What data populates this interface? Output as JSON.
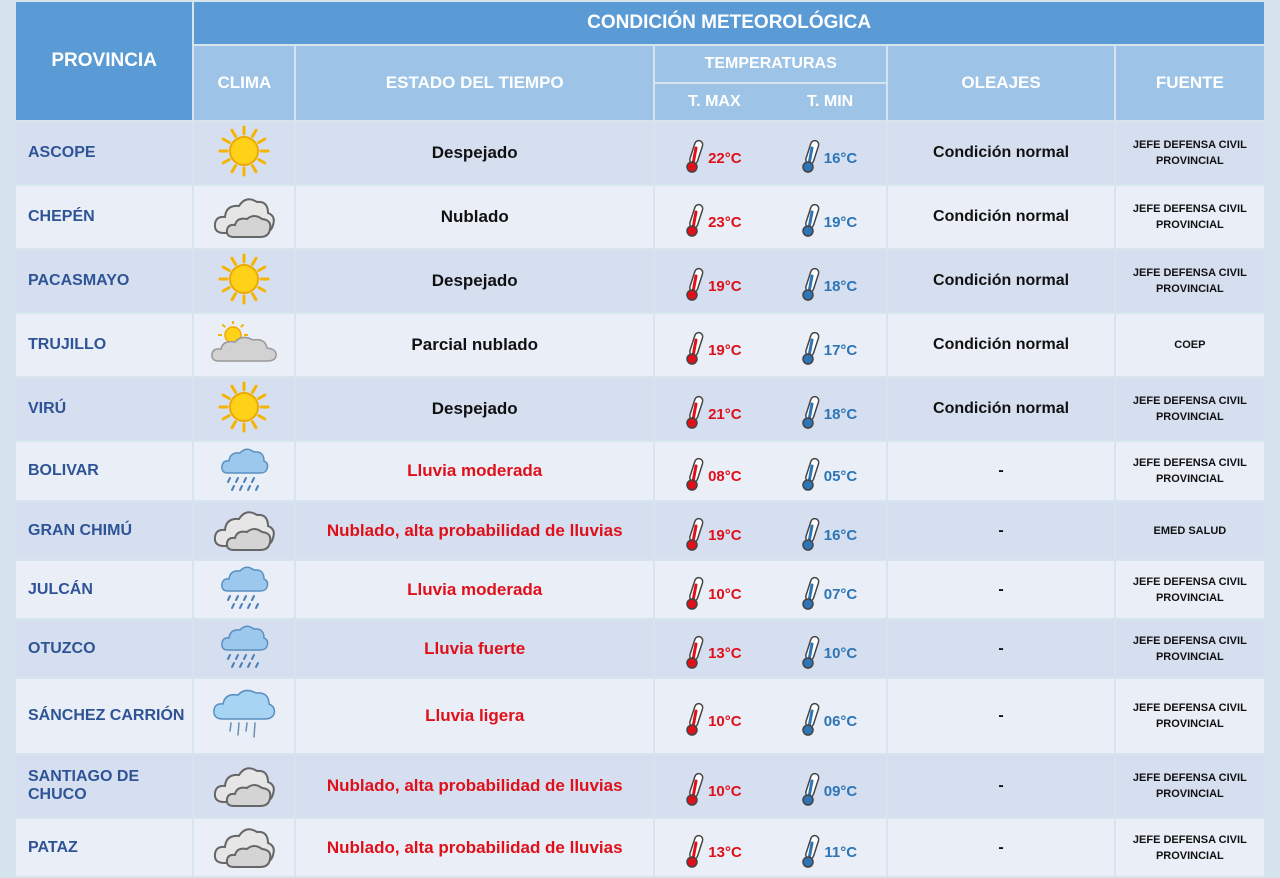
{
  "header": {
    "provincia": "PROVINCIA",
    "condicion": "CONDICIÓN METEOROLÓGICA",
    "clima": "CLIMA",
    "estado": "ESTADO DEL TIEMPO",
    "temperaturas": "TEMPERATURAS",
    "tmax": "T. MAX",
    "tmin": "T. MIN",
    "oleajes": "OLEAJES",
    "fuente": "FUENTE"
  },
  "rows": [
    {
      "provincia": "ASCOPE",
      "icon": "sun-icon",
      "estado": "Despejado",
      "alert": false,
      "tmax": "22°C",
      "tmin": "16°C",
      "oleajes": "Condición normal",
      "fuente1": "JEFE DEFENSA CIVIL",
      "fuente2": "PROVINCIAL"
    },
    {
      "provincia": "CHEPÉN",
      "icon": "cloud-icon",
      "estado": "Nublado",
      "alert": false,
      "tmax": "23°C",
      "tmin": "19°C",
      "oleajes": "Condición normal",
      "fuente1": "JEFE DEFENSA CIVIL",
      "fuente2": "PROVINCIAL"
    },
    {
      "provincia": "PACASMAYO",
      "icon": "sun-icon",
      "estado": "Despejado",
      "alert": false,
      "tmax": "19°C",
      "tmin": "18°C",
      "oleajes": "Condición normal",
      "fuente1": "JEFE DEFENSA CIVIL",
      "fuente2": "PROVINCIAL"
    },
    {
      "provincia": "TRUJILLO",
      "icon": "partly-cloudy-icon",
      "estado": "Parcial nublado",
      "alert": false,
      "tmax": "19°C",
      "tmin": "17°C",
      "oleajes": "Condición normal",
      "fuente1": "COEP",
      "fuente2": ""
    },
    {
      "provincia": "VIRÚ",
      "icon": "sun-icon",
      "estado": "Despejado",
      "alert": false,
      "tmax": "21°C",
      "tmin": "18°C",
      "oleajes": "Condición normal",
      "fuente1": "JEFE DEFENSA CIVIL",
      "fuente2": "PROVINCIAL"
    },
    {
      "provincia": "BOLIVAR",
      "icon": "rain-cloud-icon",
      "estado": "Lluvia moderada",
      "alert": true,
      "tmax": "08°C",
      "tmin": "05°C",
      "oleajes": "-",
      "fuente1": "JEFE DEFENSA CIVIL",
      "fuente2": "PROVINCIAL"
    },
    {
      "provincia": "GRAN CHIMÚ",
      "icon": "cloud-icon",
      "estado": "Nublado, alta probabilidad de lluvias",
      "alert": true,
      "tmax": "19°C",
      "tmin": "16°C",
      "oleajes": "-",
      "fuente1": "EMED SALUD",
      "fuente2": ""
    },
    {
      "provincia": "JULCÁN",
      "icon": "rain-cloud-icon",
      "estado": "Lluvia moderada",
      "alert": true,
      "tmax": "10°C",
      "tmin": "07°C",
      "oleajes": "-",
      "fuente1": "JEFE DEFENSA CIVIL",
      "fuente2": "PROVINCIAL"
    },
    {
      "provincia": "OTUZCO",
      "icon": "rain-cloud-icon",
      "estado": "Lluvia fuerte",
      "alert": true,
      "tmax": "13°C",
      "tmin": "10°C",
      "oleajes": "-",
      "fuente1": "JEFE DEFENSA CIVIL",
      "fuente2": "PROVINCIAL"
    },
    {
      "provincia": "SÁNCHEZ CARRIÓN",
      "icon": "light-rain-icon",
      "estado": "Lluvia ligera",
      "alert": true,
      "tmax": "10°C",
      "tmin": "06°C",
      "oleajes": "-",
      "fuente1": "JEFE DEFENSA CIVIL",
      "fuente2": "PROVINCIAL"
    },
    {
      "provincia": "SANTIAGO DE CHUCO",
      "icon": "cloud-icon",
      "estado": "Nublado, alta probabilidad de lluvias",
      "alert": true,
      "tmax": "10°C",
      "tmin": "09°C",
      "oleajes": "-",
      "fuente1": "JEFE DEFENSA CIVIL",
      "fuente2": "PROVINCIAL"
    },
    {
      "provincia": "PATAZ",
      "icon": "cloud-icon",
      "estado": "Nublado, alta probabilidad de lluvias",
      "alert": true,
      "tmax": "13°C",
      "tmin": "11°C",
      "oleajes": "-",
      "fuente1": "JEFE DEFENSA CIVIL",
      "fuente2": "PROVINCIAL"
    }
  ]
}
